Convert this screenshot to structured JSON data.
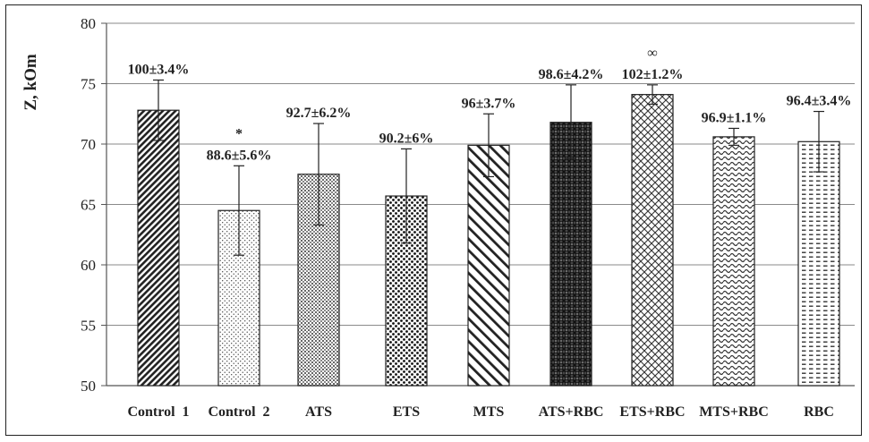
{
  "chart_data": {
    "type": "bar",
    "ylabel": "Z, kOm",
    "xlabel": "",
    "title": "",
    "ylim": [
      50,
      80
    ],
    "yticks": [
      50,
      55,
      60,
      65,
      70,
      75,
      80
    ],
    "grid": "horizontal",
    "categories": [
      "Control  1",
      "Control  2",
      "ATS",
      "ETS",
      "MTS",
      "ATS+RBC",
      "ETS+RBC",
      "MTS+RBC",
      "RBC"
    ],
    "values": [
      72.8,
      64.5,
      67.5,
      65.7,
      69.9,
      71.8,
      74.1,
      70.6,
      70.2
    ],
    "error_low": [
      70.3,
      60.8,
      63.3,
      61.8,
      67.3,
      68.8,
      73.3,
      69.9,
      67.7
    ],
    "error_high": [
      75.3,
      68.2,
      71.7,
      69.6,
      72.5,
      74.9,
      74.9,
      71.3,
      72.7
    ],
    "labels": [
      "100±3.4%",
      "88.6±5.6%",
      "92.7±6.2%",
      "90.2±6%",
      "96±3.7%",
      "98.6±4.2%",
      "102±1.2%",
      "96.9±1.1%",
      "96.4±3.4%"
    ],
    "significance_marks": [
      "",
      "*",
      "",
      "",
      "",
      "",
      "∞",
      "",
      ""
    ],
    "patterns": [
      "diagonal-dense",
      "dots-sparse",
      "crosshatch-fine",
      "dots-dense",
      "diagonal-wide",
      "crosshatch-dark",
      "diamond-lattice",
      "wave",
      "dashes"
    ]
  }
}
